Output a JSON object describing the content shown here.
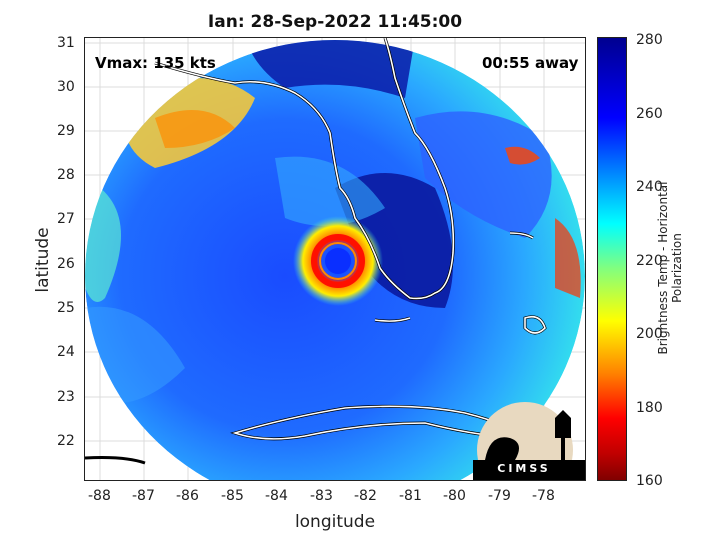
{
  "title": "Ian: 28-Sep-2022 11:45:00",
  "vmax_text": "Vmax: 135 kts",
  "time_away_text": "00:55 away",
  "xlabel": "longitude",
  "ylabel": "latitude",
  "colorbar": {
    "label": "Brightness Temp - Horizontal Polarization",
    "ticks": [
      "280",
      "260",
      "240",
      "220",
      "200",
      "180",
      "160"
    ],
    "range": [
      160,
      280
    ],
    "colors": [
      "#800000",
      "#ff0000",
      "#ff8000",
      "#ffff00",
      "#00ffff",
      "#0080ff",
      "#0000ff",
      "#000090"
    ]
  },
  "map": {
    "lon_range": [
      -88.5,
      -77.3
    ],
    "lat_range": [
      21.2,
      31.1
    ],
    "x_ticks": [
      "-88",
      "-87",
      "-86",
      "-85",
      "-84",
      "-83",
      "-82",
      "-81",
      "-80",
      "-79",
      "-78"
    ],
    "y_ticks": [
      "31",
      "30",
      "29",
      "28",
      "27",
      "26",
      "25",
      "24",
      "23",
      "22"
    ],
    "eye_center": {
      "lon": -82.6,
      "lat": 26.0
    },
    "grid": true
  },
  "logo": {
    "text": "CIMSS"
  }
}
